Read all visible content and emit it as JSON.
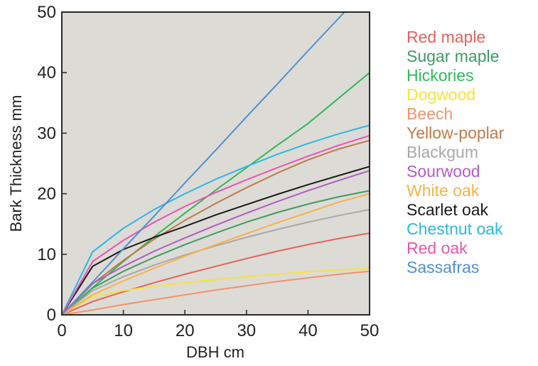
{
  "chart_data": {
    "type": "line",
    "title": "",
    "xlabel": "DBH cm",
    "ylabel": "Bark Thickness mm",
    "xlim": [
      0,
      50
    ],
    "ylim": [
      0,
      50
    ],
    "x_ticks": [
      "0",
      "10",
      "20",
      "30",
      "40",
      "50"
    ],
    "y_ticks": [
      "0",
      "10",
      "20",
      "30",
      "40",
      "50"
    ],
    "grid": false,
    "legend_position": "right",
    "plot_background": "#dddbd6",
    "x": [
      0,
      5,
      10,
      15,
      20,
      25,
      30,
      35,
      40,
      45,
      50
    ],
    "series": [
      {
        "name": "Red maple",
        "color": "#e8605a",
        "values": [
          0,
          2.2,
          3.8,
          5.3,
          6.7,
          8.0,
          9.3,
          10.5,
          11.6,
          12.6,
          13.5
        ]
      },
      {
        "name": "Sugar maple",
        "color": "#3f9a63",
        "values": [
          0,
          4.4,
          7.2,
          9.5,
          11.6,
          13.5,
          15.3,
          16.9,
          18.3,
          19.5,
          20.5
        ]
      },
      {
        "name": "Hickories",
        "color": "#2fb858",
        "values": [
          0,
          4.5,
          8.8,
          12.9,
          16.8,
          20.6,
          24.3,
          28.0,
          31.6,
          35.8,
          40.0
        ]
      },
      {
        "name": "Dogwood",
        "color": "#f5e341",
        "values": [
          0,
          3.0,
          4.0,
          4.7,
          5.3,
          5.8,
          6.3,
          6.7,
          7.1,
          7.4,
          7.7
        ]
      },
      {
        "name": "Beech",
        "color": "#f4926a",
        "values": [
          0,
          0.8,
          1.7,
          2.5,
          3.3,
          4.1,
          4.8,
          5.5,
          6.1,
          6.7,
          7.2
        ]
      },
      {
        "name": "Yellow-poplar",
        "color": "#c07a48",
        "values": [
          0,
          5.1,
          9.0,
          12.5,
          15.6,
          18.4,
          21.0,
          23.4,
          25.6,
          27.4,
          28.8
        ]
      },
      {
        "name": "Blackgum",
        "color": "#a9a9a9",
        "values": [
          0,
          4.0,
          6.3,
          8.2,
          9.9,
          11.4,
          12.8,
          14.1,
          15.3,
          16.4,
          17.4
        ]
      },
      {
        "name": "Sourwood",
        "color": "#b15bc5",
        "values": [
          0,
          5.2,
          8.0,
          10.5,
          12.7,
          14.8,
          16.8,
          18.7,
          20.5,
          22.2,
          23.8
        ]
      },
      {
        "name": "White oak",
        "color": "#f7b24a",
        "values": [
          0,
          3.3,
          5.6,
          7.7,
          9.7,
          11.6,
          13.4,
          15.2,
          16.9,
          18.6,
          20.0
        ]
      },
      {
        "name": "Scarlet oak",
        "color": "#1a1a1a",
        "values": [
          0,
          8.0,
          10.8,
          12.8,
          14.6,
          16.5,
          18.2,
          19.9,
          21.5,
          23.0,
          24.5
        ]
      },
      {
        "name": "Chestnut oak",
        "color": "#2bb7e4",
        "values": [
          0,
          10.4,
          14.3,
          17.4,
          20.0,
          22.4,
          24.5,
          26.5,
          28.3,
          29.9,
          31.3
        ]
      },
      {
        "name": "Red oak",
        "color": "#e854b2",
        "values": [
          0,
          8.8,
          12.3,
          15.3,
          17.9,
          20.2,
          22.3,
          24.3,
          26.2,
          28.0,
          29.6
        ]
      },
      {
        "name": "Sassafras",
        "color": "#4f8fd2",
        "values": [
          0,
          5.4,
          10.9,
          16.3,
          21.8,
          27.2,
          32.7,
          38.1,
          43.6,
          49.0,
          54.5
        ]
      }
    ]
  }
}
